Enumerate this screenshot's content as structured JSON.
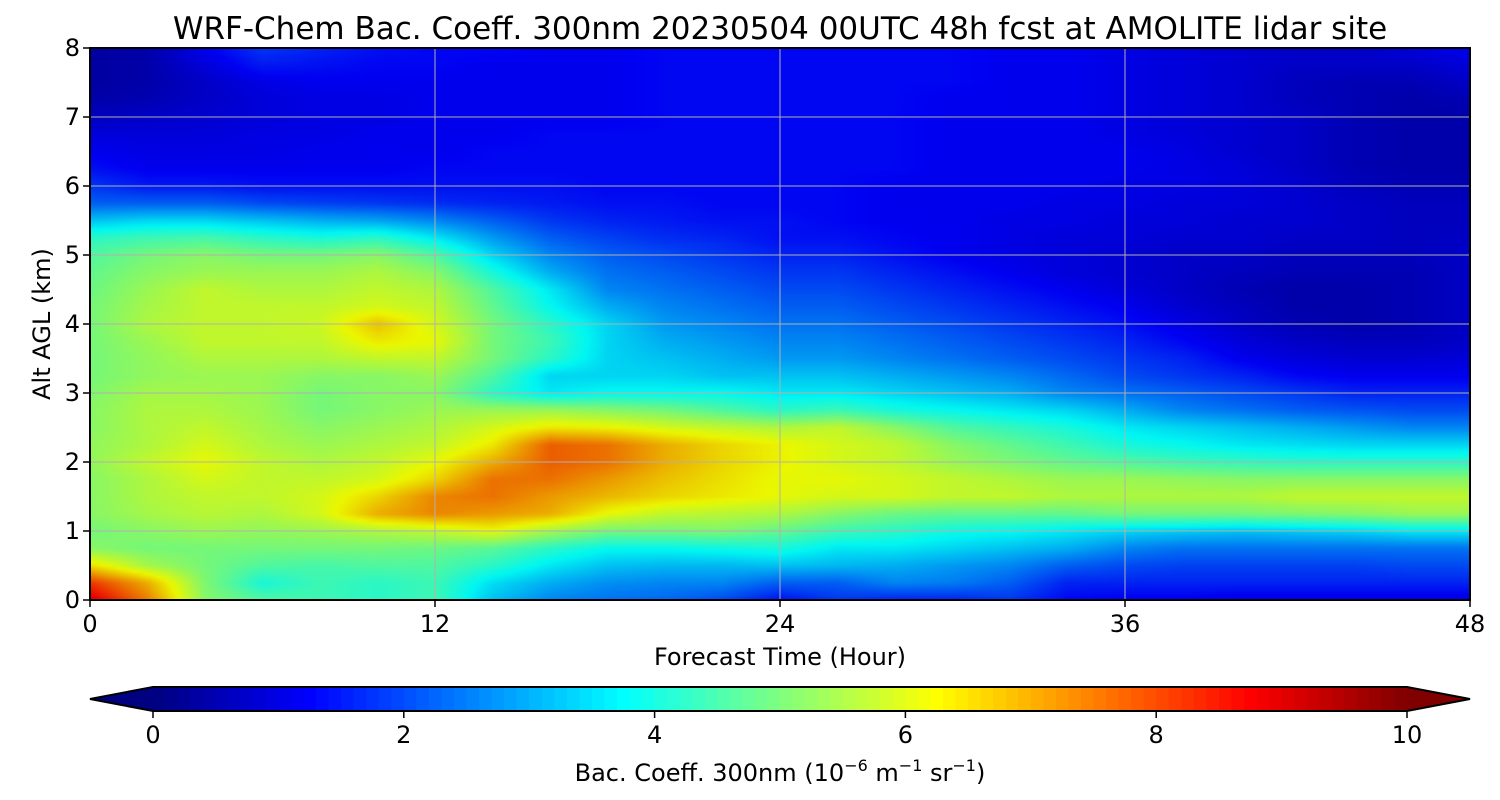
{
  "chart_data": {
    "type": "heatmap",
    "title": "WRF-Chem Bac. Coeff. 300nm  20230504 00UTC 48h fcst at AMOLITE lidar site",
    "xlabel": "Forecast Time (Hour)",
    "ylabel": "Alt AGL (km)",
    "xlim": [
      0,
      48
    ],
    "ylim": [
      0,
      8
    ],
    "xticks": [
      0,
      12,
      24,
      36,
      48
    ],
    "yticks": [
      0,
      1,
      2,
      3,
      4,
      5,
      6,
      7,
      8
    ],
    "grid": true,
    "colormap": "jet",
    "colorbar": {
      "orientation": "horizontal",
      "placement": "bottom",
      "vmin": 0,
      "vmax": 10,
      "ticks": [
        0,
        2,
        4,
        6,
        8,
        10
      ],
      "extend": "both",
      "label_main": "Bac. Coeff. 300nm  (10",
      "label_exp1": "−6",
      "label_mid": " m",
      "label_exp2": "−1",
      "label_mid2": " sr",
      "label_exp3": "−1",
      "label_end": ")"
    },
    "x": [
      0,
      2,
      4,
      6,
      8,
      10,
      12,
      14,
      16,
      18,
      20,
      22,
      24,
      26,
      28,
      30,
      32,
      34,
      36,
      38,
      40,
      42,
      44,
      46,
      48
    ],
    "y": [
      0,
      0.25,
      0.5,
      0.75,
      1,
      1.25,
      1.5,
      1.75,
      2,
      2.25,
      2.5,
      2.75,
      3,
      3.25,
      3.5,
      3.75,
      4,
      4.25,
      4.5,
      4.75,
      5,
      5.25,
      5.5,
      5.75,
      6,
      6.25,
      6.5,
      6.75,
      7,
      7.25,
      7.5,
      7.75,
      8
    ],
    "z": [
      [
        9.0,
        7.5,
        5.2,
        4.6,
        4.4,
        4.2,
        4.4,
        3.2,
        2.6,
        2.4,
        2.3,
        2.0,
        1.4,
        1.8,
        1.6,
        1.6,
        1.8,
        1.3,
        1.2,
        1.2,
        1.1,
        1.1,
        1.1,
        1.1,
        1.1
      ],
      [
        8.2,
        7.0,
        5.1,
        4.0,
        4.4,
        4.2,
        4.4,
        3.5,
        3.0,
        2.7,
        2.6,
        2.6,
        2.2,
        2.2,
        2.6,
        2.5,
        2.2,
        1.6,
        1.6,
        1.6,
        1.6,
        1.6,
        1.6,
        1.6,
        1.6
      ],
      [
        6.5,
        5.5,
        5.0,
        4.6,
        4.5,
        4.6,
        4.6,
        4.2,
        3.6,
        3.2,
        3.1,
        3.1,
        3.2,
        3.1,
        3.0,
        2.8,
        2.6,
        2.2,
        2.0,
        1.9,
        1.9,
        1.9,
        1.9,
        2.0,
        2.0
      ],
      [
        5.2,
        5.0,
        5.0,
        5.0,
        5.0,
        5.0,
        4.9,
        4.7,
        4.2,
        3.8,
        3.8,
        3.9,
        4.0,
        3.6,
        3.6,
        3.4,
        3.2,
        3.0,
        2.6,
        2.4,
        2.4,
        2.4,
        2.4,
        2.4,
        2.4
      ],
      [
        5.0,
        5.2,
        5.4,
        5.3,
        5.4,
        5.6,
        5.8,
        6.2,
        5.5,
        5.0,
        5.0,
        5.1,
        4.8,
        4.4,
        4.2,
        3.9,
        3.8,
        3.6,
        3.4,
        3.3,
        3.2,
        3.3,
        3.4,
        3.6,
        3.6
      ],
      [
        5.2,
        5.5,
        5.7,
        5.6,
        6.0,
        7.0,
        7.4,
        7.2,
        7.0,
        6.2,
        5.8,
        5.7,
        5.6,
        5.2,
        4.9,
        4.8,
        4.8,
        4.8,
        5.0,
        5.0,
        5.0,
        5.1,
        5.2,
        5.4,
        5.4
      ],
      [
        5.2,
        5.6,
        5.8,
        5.8,
        6.0,
        6.6,
        7.4,
        7.6,
        7.2,
        6.9,
        6.6,
        6.4,
        6.2,
        6.0,
        6.0,
        5.8,
        5.8,
        5.6,
        5.6,
        5.6,
        5.6,
        5.8,
        5.8,
        5.8,
        5.8
      ],
      [
        5.2,
        5.6,
        6.0,
        5.8,
        5.8,
        6.0,
        6.6,
        7.6,
        7.6,
        7.2,
        6.8,
        6.5,
        6.2,
        6.2,
        6.0,
        5.8,
        5.6,
        5.4,
        5.4,
        5.3,
        5.2,
        5.2,
        5.2,
        5.2,
        5.2
      ],
      [
        5.3,
        5.8,
        6.2,
        5.8,
        5.6,
        5.8,
        6.2,
        7.0,
        7.8,
        7.6,
        7.0,
        6.6,
        6.3,
        6.0,
        5.8,
        5.4,
        5.1,
        4.8,
        4.6,
        4.4,
        4.3,
        4.2,
        4.2,
        4.2,
        4.2
      ],
      [
        5.3,
        5.6,
        6.0,
        5.6,
        5.4,
        5.6,
        5.8,
        6.4,
        7.8,
        7.6,
        7.0,
        6.6,
        6.3,
        6.0,
        5.8,
        5.2,
        4.8,
        4.4,
        4.0,
        3.8,
        3.6,
        3.5,
        3.4,
        3.4,
        3.4
      ],
      [
        5.2,
        5.6,
        5.8,
        5.5,
        5.2,
        5.4,
        5.6,
        6.0,
        6.4,
        6.3,
        6.0,
        5.8,
        5.6,
        5.8,
        5.2,
        4.6,
        4.3,
        4.0,
        3.6,
        3.4,
        3.2,
        3.0,
        2.8,
        2.6,
        2.6
      ],
      [
        5.2,
        5.6,
        5.6,
        5.4,
        5.0,
        5.2,
        5.4,
        5.4,
        5.4,
        5.2,
        5.0,
        4.6,
        4.2,
        4.4,
        4.0,
        3.8,
        3.6,
        3.4,
        3.0,
        2.6,
        2.4,
        2.2,
        2.1,
        2.0,
        2.0
      ],
      [
        5.1,
        5.5,
        5.5,
        5.4,
        5.0,
        5.2,
        5.2,
        4.2,
        3.6,
        3.8,
        3.8,
        3.8,
        3.6,
        3.6,
        3.4,
        3.2,
        3.0,
        2.6,
        2.4,
        2.2,
        2.0,
        1.8,
        1.6,
        1.6,
        1.6
      ],
      [
        5.0,
        5.3,
        5.4,
        5.4,
        5.2,
        5.2,
        5.4,
        4.6,
        3.4,
        3.4,
        3.4,
        3.2,
        3.2,
        3.2,
        3.0,
        2.8,
        2.6,
        2.3,
        2.0,
        1.8,
        1.6,
        1.3,
        1.2,
        1.2,
        1.2
      ],
      [
        5.0,
        5.3,
        5.6,
        5.6,
        5.6,
        5.8,
        5.8,
        5.0,
        4.2,
        3.4,
        3.2,
        3.0,
        2.8,
        2.8,
        2.6,
        2.4,
        2.2,
        2.0,
        1.8,
        1.6,
        1.2,
        1.0,
        0.9,
        0.9,
        1.0
      ],
      [
        5.0,
        5.4,
        5.8,
        5.8,
        5.8,
        6.4,
        6.2,
        5.0,
        4.4,
        3.4,
        3.0,
        2.8,
        2.6,
        2.6,
        2.4,
        2.2,
        2.0,
        1.8,
        1.6,
        1.3,
        1.0,
        0.8,
        0.7,
        0.7,
        0.8
      ],
      [
        5.0,
        5.6,
        5.8,
        5.8,
        5.9,
        6.8,
        6.0,
        5.0,
        4.2,
        3.4,
        2.8,
        2.6,
        2.4,
        2.4,
        2.2,
        2.0,
        1.8,
        1.6,
        1.4,
        1.1,
        0.8,
        0.6,
        0.5,
        0.6,
        0.8
      ],
      [
        5.0,
        5.5,
        5.8,
        5.8,
        5.8,
        6.0,
        5.8,
        4.8,
        3.8,
        3.0,
        2.6,
        2.4,
        2.2,
        2.2,
        2.0,
        1.8,
        1.6,
        1.4,
        1.2,
        0.9,
        0.7,
        0.5,
        0.5,
        0.6,
        0.8
      ],
      [
        4.9,
        5.4,
        5.8,
        5.6,
        5.6,
        5.8,
        5.6,
        4.6,
        3.6,
        2.6,
        2.4,
        2.2,
        2.0,
        2.0,
        1.8,
        1.6,
        1.4,
        1.2,
        1.0,
        0.8,
        0.6,
        0.5,
        0.5,
        0.6,
        0.8
      ],
      [
        4.8,
        5.2,
        5.4,
        5.4,
        5.4,
        5.6,
        5.2,
        4.0,
        3.0,
        2.4,
        2.2,
        2.0,
        1.8,
        1.8,
        1.6,
        1.4,
        1.2,
        1.0,
        0.9,
        0.8,
        0.7,
        0.6,
        0.6,
        0.6,
        0.8
      ],
      [
        4.6,
        5.0,
        5.2,
        5.0,
        5.0,
        5.2,
        4.6,
        3.4,
        2.6,
        2.2,
        2.0,
        1.8,
        1.6,
        1.6,
        1.4,
        1.2,
        1.1,
        1.0,
        0.9,
        0.8,
        0.8,
        0.7,
        0.7,
        0.7,
        0.8
      ],
      [
        4.2,
        4.4,
        4.5,
        4.2,
        4.0,
        4.2,
        3.6,
        2.8,
        2.2,
        1.9,
        1.7,
        1.6,
        1.4,
        1.4,
        1.3,
        1.2,
        1.1,
        1.0,
        1.0,
        0.9,
        0.9,
        0.8,
        0.8,
        0.7,
        0.8
      ],
      [
        3.2,
        3.4,
        3.4,
        3.2,
        3.0,
        2.9,
        2.6,
        2.2,
        1.8,
        1.6,
        1.5,
        1.4,
        1.4,
        1.3,
        1.2,
        1.2,
        1.1,
        1.1,
        1.0,
        1.0,
        0.9,
        0.9,
        0.8,
        0.7,
        0.7
      ],
      [
        2.2,
        2.2,
        2.2,
        2.0,
        1.9,
        1.8,
        1.7,
        1.6,
        1.5,
        1.4,
        1.4,
        1.3,
        1.3,
        1.3,
        1.2,
        1.2,
        1.2,
        1.1,
        1.1,
        1.0,
        1.0,
        0.9,
        0.8,
        0.7,
        0.7
      ],
      [
        1.8,
        1.5,
        1.5,
        1.4,
        1.4,
        1.4,
        1.4,
        1.4,
        1.4,
        1.3,
        1.3,
        1.3,
        1.3,
        1.3,
        1.2,
        1.2,
        1.2,
        1.2,
        1.1,
        1.1,
        1.0,
        0.9,
        0.7,
        0.6,
        0.6
      ],
      [
        1.4,
        1.2,
        1.2,
        1.2,
        1.2,
        1.2,
        1.3,
        1.3,
        1.3,
        1.3,
        1.3,
        1.3,
        1.3,
        1.3,
        1.3,
        1.2,
        1.2,
        1.2,
        1.2,
        1.1,
        1.0,
        0.8,
        0.6,
        0.5,
        0.5
      ],
      [
        1.2,
        1.1,
        1.1,
        1.1,
        1.2,
        1.2,
        1.2,
        1.3,
        1.3,
        1.3,
        1.3,
        1.3,
        1.3,
        1.3,
        1.3,
        1.2,
        1.2,
        1.2,
        1.2,
        1.1,
        0.9,
        0.8,
        0.6,
        0.5,
        0.5
      ],
      [
        1.0,
        1.0,
        1.0,
        1.1,
        1.1,
        1.2,
        1.2,
        1.2,
        1.3,
        1.3,
        1.3,
        1.3,
        1.3,
        1.3,
        1.3,
        1.2,
        1.2,
        1.2,
        1.1,
        1.0,
        0.9,
        0.8,
        0.6,
        0.5,
        0.5
      ],
      [
        0.7,
        0.8,
        0.9,
        1.0,
        1.1,
        1.1,
        1.2,
        1.2,
        1.2,
        1.2,
        1.3,
        1.3,
        1.3,
        1.3,
        1.3,
        1.2,
        1.2,
        1.2,
        1.1,
        1.0,
        0.9,
        0.8,
        0.6,
        0.5,
        0.5
      ],
      [
        0.5,
        0.6,
        0.8,
        1.0,
        1.1,
        1.1,
        1.2,
        1.2,
        1.2,
        1.2,
        1.3,
        1.3,
        1.3,
        1.3,
        1.3,
        1.2,
        1.2,
        1.2,
        1.1,
        1.0,
        0.9,
        0.7,
        0.6,
        0.5,
        0.6
      ],
      [
        0.4,
        0.5,
        0.8,
        1.1,
        1.2,
        1.2,
        1.2,
        1.2,
        1.2,
        1.2,
        1.3,
        1.3,
        1.3,
        1.3,
        1.3,
        1.3,
        1.2,
        1.2,
        1.1,
        1.0,
        0.9,
        0.7,
        0.6,
        0.6,
        0.8
      ],
      [
        0.4,
        0.5,
        1.0,
        1.5,
        1.4,
        1.3,
        1.3,
        1.2,
        1.2,
        1.2,
        1.3,
        1.3,
        1.3,
        1.3,
        1.3,
        1.3,
        1.2,
        1.2,
        1.1,
        1.0,
        0.9,
        0.8,
        0.8,
        0.8,
        1.0
      ],
      [
        0.4,
        0.5,
        1.2,
        1.8,
        1.6,
        1.4,
        1.3,
        1.3,
        1.2,
        1.2,
        1.3,
        1.3,
        1.3,
        1.3,
        1.3,
        1.3,
        1.2,
        1.2,
        1.1,
        1.0,
        0.9,
        0.8,
        0.8,
        1.0,
        1.2
      ]
    ]
  }
}
